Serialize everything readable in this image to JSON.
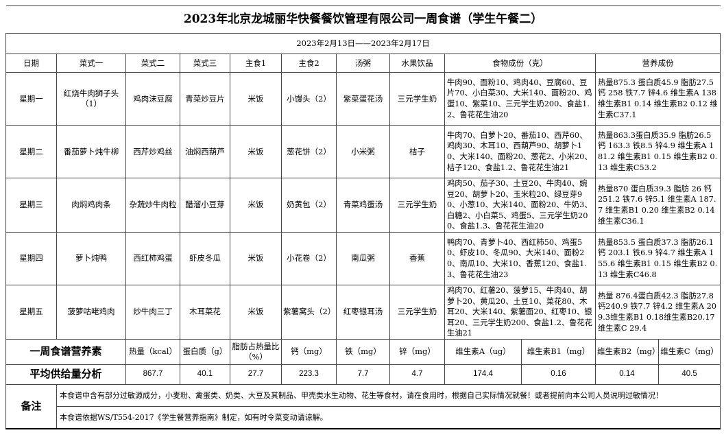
{
  "title": "2023年北京龙城丽华快餐餐饮管理有限公司一周食谱（学生午餐二）",
  "date_range": "2023年2月13日——2023年2月17日",
  "headers": [
    "日期",
    "菜式一",
    "菜式二",
    "菜式三",
    "主食1",
    "主食2",
    "汤粥",
    "水果饮品",
    "食物成份（克）",
    "营养成份"
  ],
  "days": [
    {
      "day": "星期一",
      "dish1": "红烧牛肉狮子头（1）",
      "dish2": "鸡肉沫豆腐",
      "dish3": "青菜炒豆片",
      "staple1": "米饭",
      "staple2": "小馒头（2）",
      "soup": "紫菜蛋花汤",
      "fruit": "三元学生奶",
      "ingredients": "牛肉90、面粉10、鸡肉40、豆腐60、豆片70、小白菜30、大米140、面粉20、鸡蛋10、紫菜10、三元学生奶200、食盐1.2、鲁花花生油20",
      "nutrition": "热量875.3 蛋白质45.9 脂肪27.5 钙 258 铁7.7 锌4.6 维生素A 138 维生素B1 0.14 维生素B2 0.12 维生素C37.1"
    },
    {
      "day": "星期二",
      "dish1": "番茄萝卜炖牛柳",
      "dish2": "西芹炒鸡丝",
      "dish3": "油焖西葫芦",
      "staple1": "米饭",
      "staple2": "葱花饼（2）",
      "soup": "小米粥",
      "fruit": "桔子",
      "ingredients": "牛肉70、白萝卜20、番茄10、西芹60、鸡肉30、木耳10、西葫芦90、胡萝卜10、大米140、面粉20、葱花2、小米20、桔子120、食盐1.2、鲁花花生油21",
      "nutrition": "热量863.3蛋白质35.9 脂肪26.5 钙 163.3 铁8.5 锌4.9 维生素A 181.2 维生素B1 0.15 维生素B2 0.13 维生素C53.2"
    },
    {
      "day": "星期三",
      "dish1": "肉焖鸡肉条",
      "dish2": "杂蔬炒牛肉粒",
      "dish3": "醋溜小豆芽",
      "staple1": "米饭",
      "staple2": "奶黄包（2）",
      "soup": "青菜鸡蛋汤",
      "fruit": "三元学生奶",
      "ingredients": "鸡肉50、茄子30、土豆20、牛肉40、豌豆20、胡萝卜20、玉米粒20、绿豆芽90、小葱10、大米140、面粉20、牛奶3、白糖2、小白菜5、鸡蛋5、三元学生奶200、食盐1.3、鲁花花生油20",
      "nutrition": "热量870 蛋白质39.3 脂肪 26 钙 251.2 铁7.6 锌5.1 维生素A 187.7 维生素B1 0.20 维生素B2 0.14 维生素C36.1"
    },
    {
      "day": "星期四",
      "dish1": "萝卜炖鸭",
      "dish2": "西红柿鸡蛋",
      "dish3": "虾皮冬瓜",
      "staple1": "米饭",
      "staple2": "小花卷（2）",
      "soup": "南瓜粥",
      "fruit": "香蕉",
      "ingredients": "鸭肉70、青萝卜40、西红柿50、鸡蛋50、虾皮10、冬瓜90、大米140、面粉20、南瓜10、大米10、香蕉120、食盐1.3、鲁花花生油23",
      "nutrition": "热量853.5 蛋白质37.3 脂肪26.1 钙 203.1 铁6.9 锌4.7 维生素A 155.6 维生素B1 0.15 维生素B2 0.13 维生素C46.8"
    },
    {
      "day": "星期五",
      "dish1": "菠萝咕咾鸡肉",
      "dish2": "炒牛肉三丁",
      "dish3": "木耳菜花",
      "staple1": "米饭",
      "staple2": "紫薯窝头（2）",
      "soup": "红枣银耳汤",
      "fruit": "三元学生奶",
      "ingredients": "鸡肉70、红薯20、菠萝15、牛肉40、胡萝卜20、黄瓜20、土豆10、菜花80、木耳20、大米140、紫薯面20、红枣10、银耳20、三元学生奶200、食盐1.2、鲁花花生油21",
      "nutrition": "热量 876.4蛋白质42.3 脂肪27.8 钙240.9 铁7.7 锌4.2 维生素A 209.3维生素B1 0.18维生素B20.17 维生素C 29.4"
    }
  ],
  "summary": {
    "label": "一周食谱营养素",
    "avg_label": "平均供给量分析",
    "nutrients": [
      "热量（kcal）",
      "蛋白质（g）",
      "脂肪占热量比（%）",
      "钙（mg）",
      "铁（mg）",
      "锌（mg）",
      "维生素A（ug）",
      "维生素B1（mg）",
      "维生素B2（mg）",
      "维生素C（mg）"
    ],
    "values": [
      "867.7",
      "40.1",
      "27.7",
      "223.3",
      "7.7",
      "4.7",
      "174.4",
      "0.16",
      "0.14",
      "40.5"
    ]
  },
  "notes": {
    "label": "备注",
    "lines": [
      "本食谱中含有部分过敏源成分，小麦粉、禽蛋类、奶类、大豆及其制品、甲壳类水生动物、花生等食材，请在食用时，根据自己实际情况就餐！或者提前向本公司人员说明过敏情况！",
      "本食谱依据WS/T554-2017《学生餐营养指南》制定，如有时令菜变动请谅解。"
    ]
  }
}
